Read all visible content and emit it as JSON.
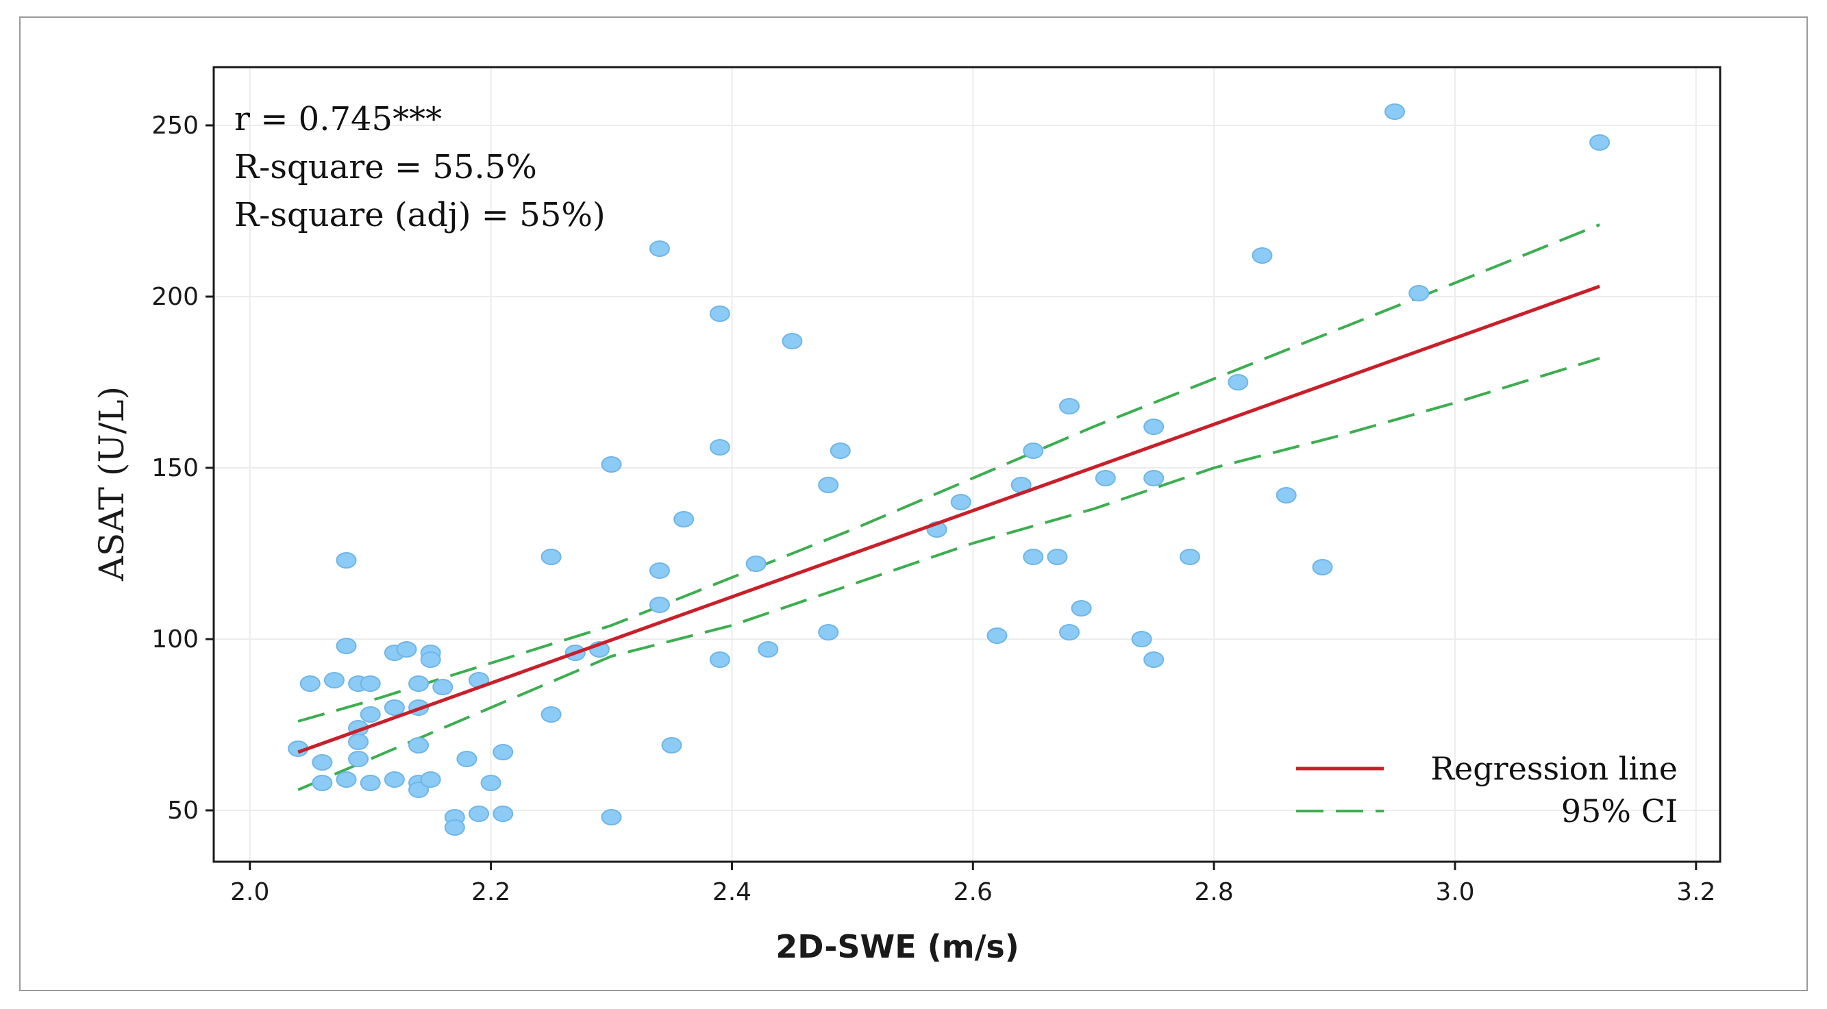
{
  "chart_data": {
    "type": "scatter",
    "xlabel": "2D-SWE (m/s)",
    "ylabel": "ASAT (U/L)",
    "xlim": [
      1.97,
      3.22
    ],
    "ylim": [
      35,
      267
    ],
    "xticks": [
      2.0,
      2.2,
      2.4,
      2.6,
      2.8,
      3.0,
      3.2
    ],
    "xtick_labels": [
      "2.0",
      "2.2",
      "2.4",
      "2.6",
      "2.8",
      "3.0",
      "3.2"
    ],
    "yticks": [
      50,
      100,
      150,
      200,
      250
    ],
    "ytick_labels": [
      "50",
      "100",
      "150",
      "200",
      "250"
    ],
    "grid": true,
    "stats": [
      "r = 0.745***",
      "R-square = 55.5%",
      "R-square (adj) = 55%)"
    ],
    "legend_position": "bottom-right",
    "legend": [
      {
        "label": "Regression line",
        "style": "solid",
        "color": "#c8202a"
      },
      {
        "label": "95% CI",
        "style": "dashed",
        "color": "#3cae50"
      }
    ],
    "point_color": "#8ccbf5",
    "point_edge": "#6fb6e8",
    "series": [
      {
        "name": "Observations",
        "points": [
          [
            2.04,
            68
          ],
          [
            2.05,
            87
          ],
          [
            2.06,
            64
          ],
          [
            2.06,
            58
          ],
          [
            2.07,
            88
          ],
          [
            2.08,
            98
          ],
          [
            2.08,
            123
          ],
          [
            2.08,
            59
          ],
          [
            2.09,
            87
          ],
          [
            2.09,
            74
          ],
          [
            2.09,
            70
          ],
          [
            2.09,
            65
          ],
          [
            2.1,
            87
          ],
          [
            2.1,
            78
          ],
          [
            2.1,
            58
          ],
          [
            2.12,
            96
          ],
          [
            2.12,
            80
          ],
          [
            2.12,
            59
          ],
          [
            2.13,
            97
          ],
          [
            2.14,
            87
          ],
          [
            2.14,
            80
          ],
          [
            2.14,
            69
          ],
          [
            2.14,
            58
          ],
          [
            2.14,
            56
          ],
          [
            2.15,
            96
          ],
          [
            2.15,
            94
          ],
          [
            2.15,
            59
          ],
          [
            2.16,
            86
          ],
          [
            2.17,
            48
          ],
          [
            2.17,
            45
          ],
          [
            2.18,
            65
          ],
          [
            2.19,
            88
          ],
          [
            2.19,
            49
          ],
          [
            2.2,
            58
          ],
          [
            2.21,
            67
          ],
          [
            2.21,
            49
          ],
          [
            2.25,
            124
          ],
          [
            2.25,
            78
          ],
          [
            2.27,
            96
          ],
          [
            2.29,
            97
          ],
          [
            2.3,
            151
          ],
          [
            2.3,
            48
          ],
          [
            2.34,
            214
          ],
          [
            2.34,
            120
          ],
          [
            2.34,
            110
          ],
          [
            2.35,
            69
          ],
          [
            2.36,
            135
          ],
          [
            2.39,
            195
          ],
          [
            2.39,
            156
          ],
          [
            2.39,
            94
          ],
          [
            2.42,
            122
          ],
          [
            2.43,
            97
          ],
          [
            2.45,
            187
          ],
          [
            2.48,
            145
          ],
          [
            2.48,
            102
          ],
          [
            2.49,
            155
          ],
          [
            2.57,
            132
          ],
          [
            2.59,
            140
          ],
          [
            2.62,
            101
          ],
          [
            2.64,
            145
          ],
          [
            2.65,
            155
          ],
          [
            2.65,
            124
          ],
          [
            2.67,
            124
          ],
          [
            2.68,
            168
          ],
          [
            2.68,
            102
          ],
          [
            2.69,
            109
          ],
          [
            2.71,
            147
          ],
          [
            2.74,
            100
          ],
          [
            2.75,
            162
          ],
          [
            2.75,
            147
          ],
          [
            2.75,
            94
          ],
          [
            2.78,
            124
          ],
          [
            2.82,
            175
          ],
          [
            2.84,
            212
          ],
          [
            2.86,
            142
          ],
          [
            2.89,
            121
          ],
          [
            2.95,
            254
          ],
          [
            2.97,
            201
          ],
          [
            3.12,
            245
          ]
        ]
      }
    ],
    "regression": {
      "x": [
        2.04,
        3.12
      ],
      "y": [
        67,
        203
      ]
    },
    "ci_upper": {
      "x": [
        2.04,
        2.1,
        2.2,
        2.3,
        2.4,
        2.5,
        2.6,
        2.7,
        2.8,
        2.9,
        3.0,
        3.12
      ],
      "y": [
        76,
        82,
        93,
        104,
        118,
        132,
        147,
        162,
        176,
        190,
        204,
        221
      ]
    },
    "ci_lower": {
      "x": [
        2.04,
        2.1,
        2.2,
        2.3,
        2.4,
        2.5,
        2.6,
        2.7,
        2.8,
        2.9,
        3.0,
        3.12
      ],
      "y": [
        56,
        65,
        80,
        95,
        104,
        116,
        128,
        138,
        150,
        159,
        169,
        182
      ]
    }
  }
}
